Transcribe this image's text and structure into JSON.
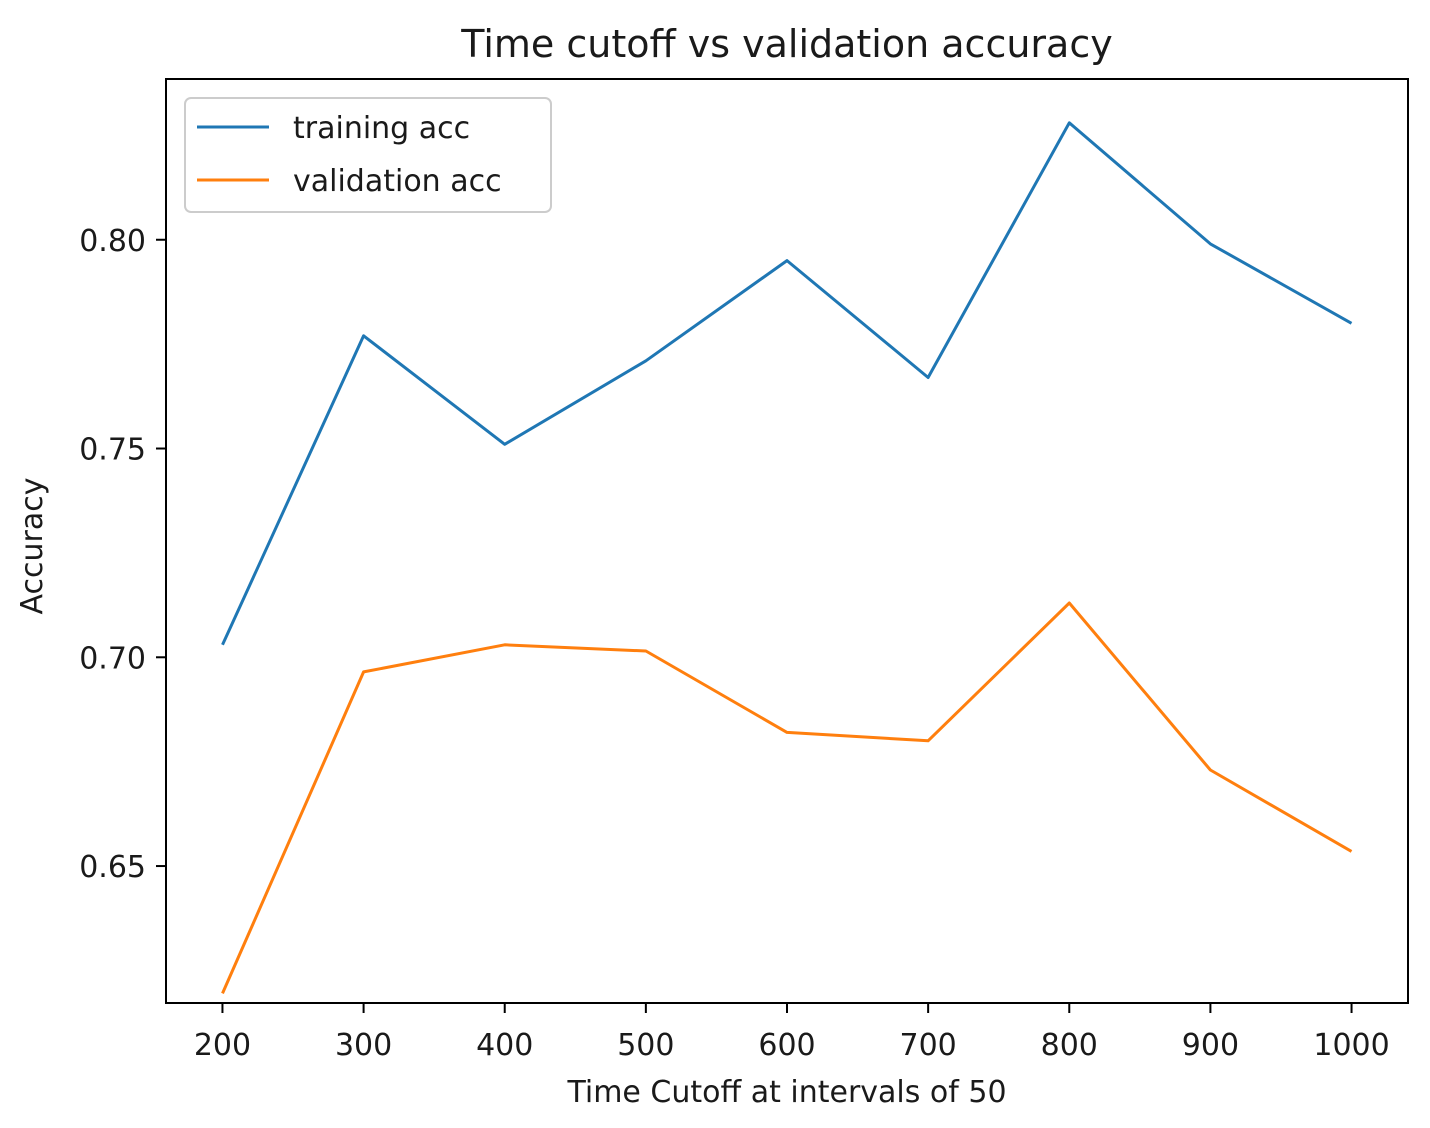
{
  "chart_data": {
    "type": "line",
    "title": "Time cutoff vs validation accuracy",
    "xlabel": "Time Cutoff at intervals of 50",
    "ylabel": "Accuracy",
    "x": [
      200,
      300,
      400,
      500,
      600,
      700,
      800,
      900,
      1000
    ],
    "xticks": [
      "200",
      "300",
      "400",
      "500",
      "600",
      "700",
      "800",
      "900",
      "1000"
    ],
    "yticks": [
      "0.65",
      "0.70",
      "0.75",
      "0.80"
    ],
    "xlim": [
      160,
      1040
    ],
    "ylim": [
      0.6172,
      0.8385
    ],
    "grid": false,
    "legend_position": "upper left",
    "series": [
      {
        "name": "training acc",
        "color": "#1f77b4",
        "values": [
          0.703,
          0.777,
          0.751,
          0.771,
          0.795,
          0.767,
          0.828,
          0.799,
          0.78
        ]
      },
      {
        "name": "validation acc",
        "color": "#ff7f0e",
        "values": [
          0.6195,
          0.6965,
          0.703,
          0.7015,
          0.682,
          0.68,
          0.713,
          0.673,
          0.6535
        ]
      }
    ]
  }
}
